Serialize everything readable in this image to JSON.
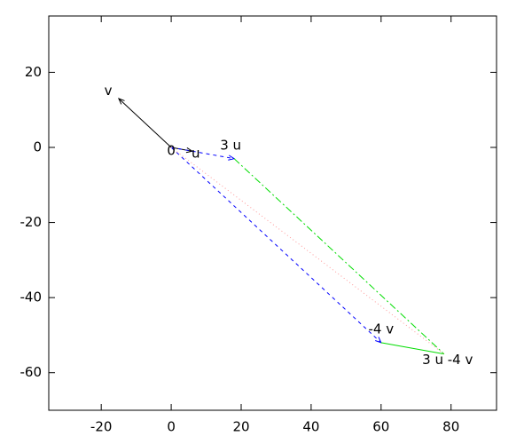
{
  "chart_data": {
    "type": "vector",
    "xlim": [
      -35,
      93
    ],
    "xticks": [
      -20,
      0,
      20,
      40,
      60,
      80
    ],
    "ylim": [
      -70,
      35
    ],
    "yticks": [
      -60,
      -40,
      -20,
      0,
      20
    ],
    "series": [
      {
        "color": "#000000",
        "dash": "solid",
        "arrow": true,
        "x": [
          0,
          6
        ],
        "y": [
          0,
          -1
        ]
      },
      {
        "color": "#000000",
        "dash": "solid",
        "arrow": true,
        "x": [
          0,
          -15
        ],
        "y": [
          0,
          13
        ]
      },
      {
        "color": "#0000ff",
        "dash": "dashed",
        "arrow": true,
        "x": [
          0,
          18
        ],
        "y": [
          0,
          -3
        ]
      },
      {
        "color": "#0000ff",
        "dash": "dashed",
        "arrow": true,
        "x": [
          0,
          60
        ],
        "y": [
          0,
          -52
        ]
      },
      {
        "color": "#00dd00",
        "dash": "dashdot",
        "arrow": false,
        "x": [
          18,
          78
        ],
        "y": [
          -3,
          -55
        ]
      },
      {
        "color": "#00dd00",
        "dash": "solid",
        "arrow": false,
        "x": [
          60,
          78
        ],
        "y": [
          -52,
          -55
        ]
      },
      {
        "color": "#ff9999",
        "dash": "dotted",
        "arrow": false,
        "x": [
          0,
          78
        ],
        "y": [
          0,
          -55
        ]
      }
    ],
    "annotations": [
      {
        "text": "v",
        "x": -18,
        "y": 15
      },
      {
        "text": "0",
        "x": 0,
        "y": -1
      },
      {
        "text": "u",
        "x": 7,
        "y": -1.7
      },
      {
        "text": "3 u",
        "x": 17,
        "y": 0.5
      },
      {
        "text": "-4 v",
        "x": 60,
        "y": -48.5
      },
      {
        "text": "3 u -4 v",
        "x": 79,
        "y": -56.6
      }
    ]
  }
}
